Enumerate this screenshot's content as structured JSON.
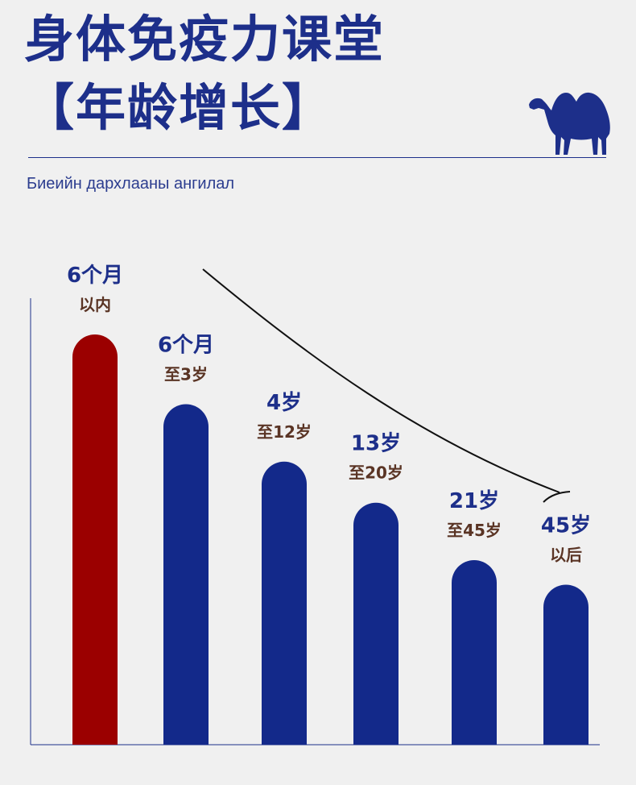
{
  "header": {
    "title_line1": "身体免疫力课堂",
    "title_line2": "【年龄增长】",
    "subtitle": "Биеийн дархлааны ангилал"
  },
  "logo": {
    "icon": "camel-icon",
    "color": "#1d2f8a"
  },
  "chart_data": {
    "type": "bar",
    "categories": [
      {
        "top": "6个月",
        "bottom": "以内"
      },
      {
        "top": "6个月",
        "bottom": "至3岁"
      },
      {
        "top": "4岁",
        "bottom": "至12岁"
      },
      {
        "top": "13岁",
        "bottom": "至20岁"
      },
      {
        "top": "21岁",
        "bottom": "至45岁"
      },
      {
        "top": "45岁",
        "bottom": "以后"
      }
    ],
    "values": [
      100,
      83,
      69,
      59,
      45,
      39
    ],
    "ylim": [
      0,
      100
    ],
    "bar_colors": [
      "#9b0000",
      "#13298a",
      "#13298a",
      "#13298a",
      "#13298a",
      "#13298a"
    ],
    "annotation": "downward trend arrow",
    "grid": false
  }
}
